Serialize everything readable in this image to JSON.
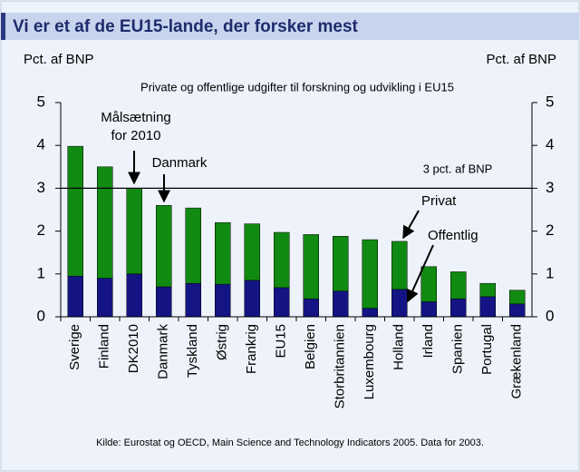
{
  "chart_data": {
    "type": "stacked_bar",
    "title": "Vi er et af de EU15-lande, der forsker mest",
    "subtitle": "Private og offentlige udgifter til forskning og udvikling i EU15",
    "y_label": "Pct. af BNP",
    "y2_label": "Pct. af BNP",
    "source": "Kilde: Eurostat og OECD, Main Science and Technology Indicators 2005. Data for 2003.",
    "categories": [
      "Sverige",
      "Finland",
      "DK2010",
      "Danmark",
      "Tyskland",
      "Østrig",
      "Frankrig",
      "EU15",
      "Belgien",
      "Storbritannien",
      "Luxembourg",
      "Holland",
      "Irland",
      "Spanien",
      "Portugal",
      "Grækenland"
    ],
    "series": [
      {
        "name": "Offentlig",
        "color": "#141485",
        "values": [
          0.95,
          0.9,
          1.0,
          0.7,
          0.78,
          0.76,
          0.85,
          0.68,
          0.42,
          0.6,
          0.2,
          0.64,
          0.35,
          0.42,
          0.47,
          0.3
        ]
      },
      {
        "name": "Privat",
        "color": "#118a11",
        "values": [
          3.03,
          2.6,
          2.0,
          1.9,
          1.76,
          1.44,
          1.32,
          1.29,
          1.5,
          1.28,
          1.6,
          1.12,
          0.82,
          0.63,
          0.31,
          0.32
        ]
      }
    ],
    "reference_line": 3,
    "annotations": [
      "Målsætning",
      "for 2010",
      "Danmark",
      "3 pct. af BNP"
    ],
    "ylim": [
      0,
      5
    ],
    "yticks": [
      0,
      1,
      2,
      3,
      4,
      5
    ],
    "y2lim": [
      0,
      5
    ],
    "y2ticks": [
      0,
      1,
      2,
      3,
      4,
      5
    ]
  }
}
